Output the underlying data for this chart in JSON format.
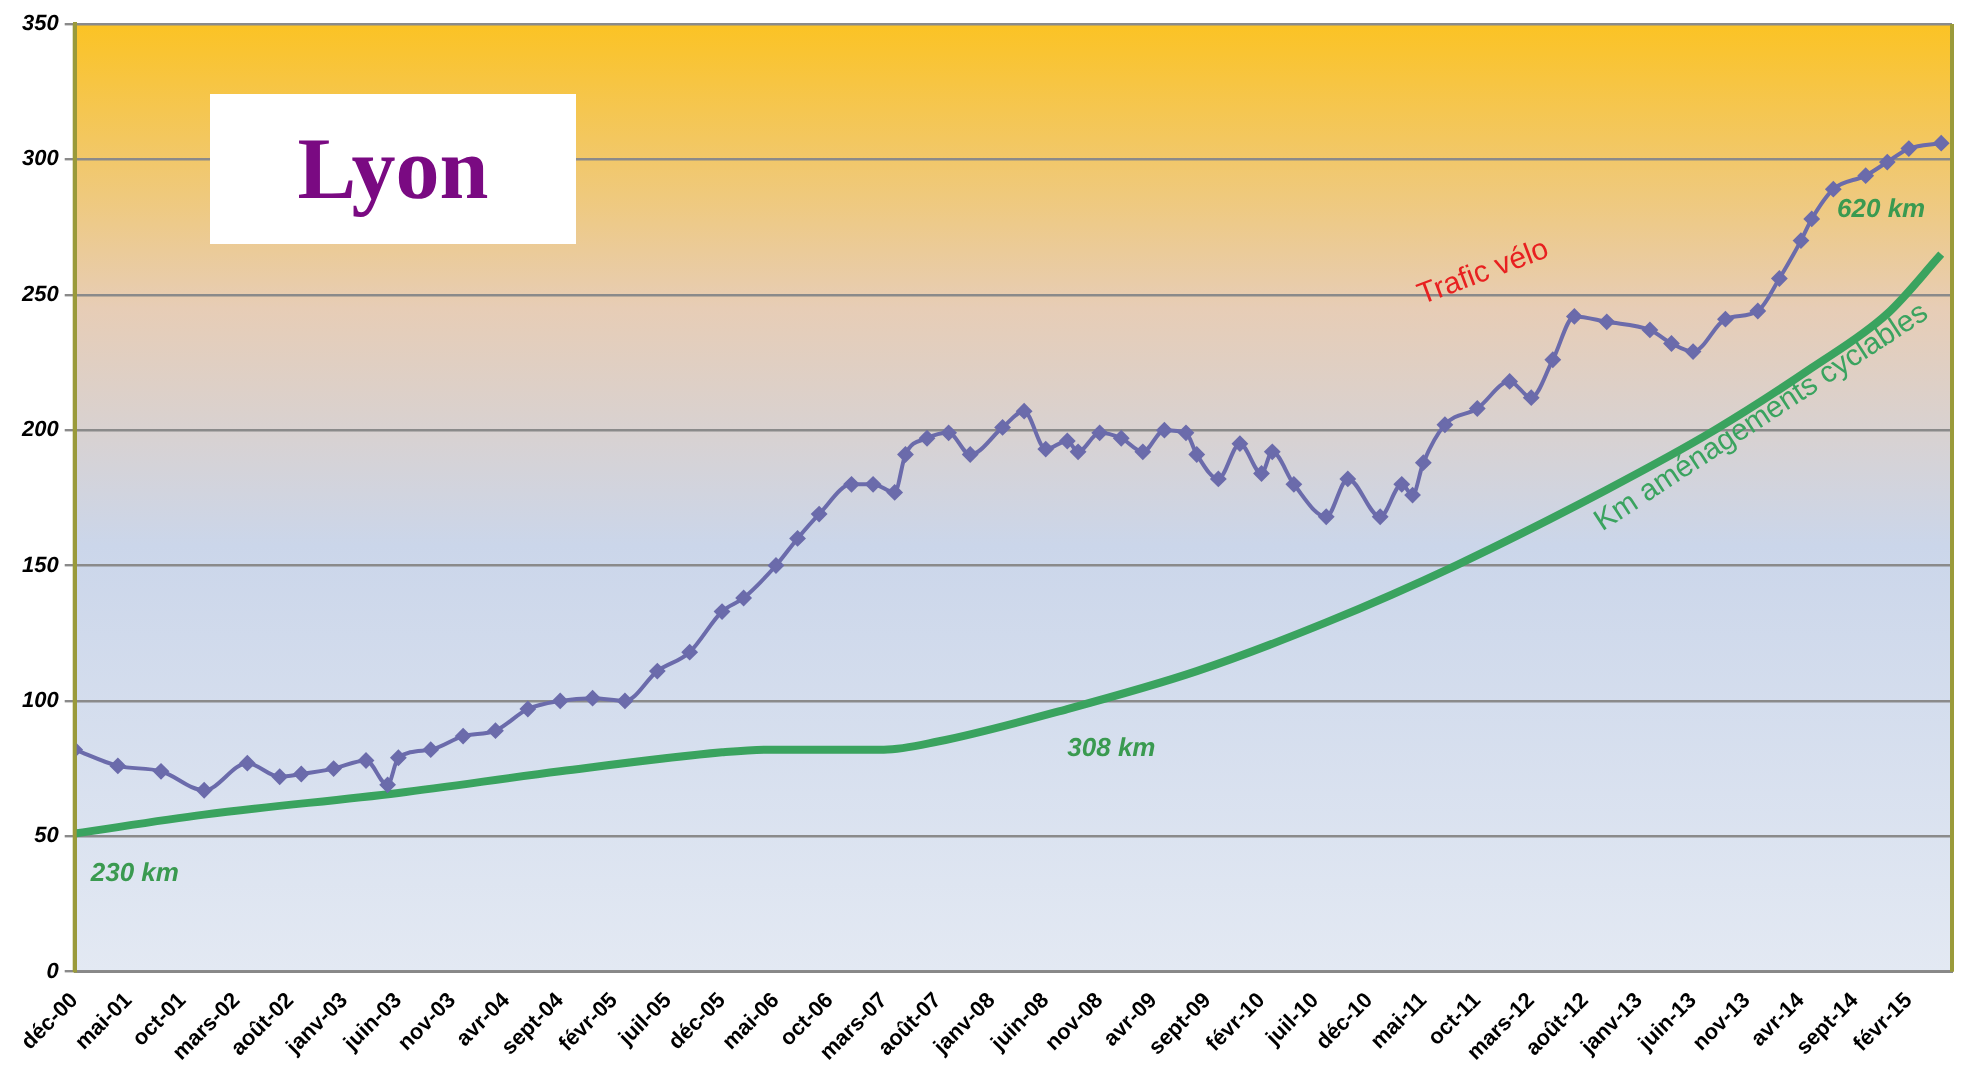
{
  "chart_data": {
    "type": "line",
    "title": "Lyon",
    "xlim": [
      "2000-12",
      "2015-06"
    ],
    "xticks": [
      {
        "value": "2000-12",
        "label": "déc-00"
      },
      {
        "value": "2001-05",
        "label": "mai-01"
      },
      {
        "value": "2001-10",
        "label": "oct-01"
      },
      {
        "value": "2002-03",
        "label": "mars-02"
      },
      {
        "value": "2002-08",
        "label": "août-02"
      },
      {
        "value": "2003-01",
        "label": "janv-03"
      },
      {
        "value": "2003-06",
        "label": "juin-03"
      },
      {
        "value": "2003-11",
        "label": "nov-03"
      },
      {
        "value": "2004-04",
        "label": "avr-04"
      },
      {
        "value": "2004-09",
        "label": "sept-04"
      },
      {
        "value": "2005-02",
        "label": "févr-05"
      },
      {
        "value": "2005-07",
        "label": "juil-05"
      },
      {
        "value": "2005-12",
        "label": "déc-05"
      },
      {
        "value": "2006-05",
        "label": "mai-06"
      },
      {
        "value": "2006-10",
        "label": "oct-06"
      },
      {
        "value": "2007-03",
        "label": "mars-07"
      },
      {
        "value": "2007-08",
        "label": "août-07"
      },
      {
        "value": "2008-01",
        "label": "janv-08"
      },
      {
        "value": "2008-06",
        "label": "juin-08"
      },
      {
        "value": "2008-11",
        "label": "nov-08"
      },
      {
        "value": "2009-04",
        "label": "avr-09"
      },
      {
        "value": "2009-09",
        "label": "sept-09"
      },
      {
        "value": "2010-02",
        "label": "févr-10"
      },
      {
        "value": "2010-07",
        "label": "juil-10"
      },
      {
        "value": "2010-12",
        "label": "déc-10"
      },
      {
        "value": "2011-05",
        "label": "mai-11"
      },
      {
        "value": "2011-10",
        "label": "oct-11"
      },
      {
        "value": "2012-03",
        "label": "mars-12"
      },
      {
        "value": "2012-08",
        "label": "août-12"
      },
      {
        "value": "2013-01",
        "label": "janv-13"
      },
      {
        "value": "2013-06",
        "label": "juin-13"
      },
      {
        "value": "2013-11",
        "label": "nov-13"
      },
      {
        "value": "2014-04",
        "label": "avr-14"
      },
      {
        "value": "2014-09",
        "label": "sept-14"
      },
      {
        "value": "2015-02",
        "label": "févr-15"
      }
    ],
    "ylim": [
      0,
      350
    ],
    "yticks": [
      0,
      50,
      100,
      150,
      200,
      250,
      300,
      350
    ],
    "grid": "y",
    "legend": false,
    "series": [
      {
        "name": "Trafic vélo",
        "color": "#6b6bab",
        "marker": "diamond",
        "x": [
          "2000-12",
          "2001-04",
          "2001-08",
          "2001-12",
          "2002-04",
          "2002-07",
          "2002-09",
          "2002-12",
          "2003-03",
          "2003-05",
          "2003-06",
          "2003-09",
          "2003-12",
          "2004-03",
          "2004-06",
          "2004-09",
          "2004-12",
          "2005-03",
          "2005-06",
          "2005-09",
          "2005-12",
          "2006-02",
          "2006-05",
          "2006-07",
          "2006-09",
          "2006-12",
          "2007-02",
          "2007-04",
          "2007-05",
          "2007-07",
          "2007-09",
          "2007-11",
          "2008-02",
          "2008-04",
          "2008-06",
          "2008-08",
          "2008-09",
          "2008-11",
          "2009-01",
          "2009-03",
          "2009-05",
          "2009-07",
          "2009-08",
          "2009-10",
          "2009-12",
          "2010-02",
          "2010-03",
          "2010-05",
          "2010-08",
          "2010-10",
          "2011-01",
          "2011-03",
          "2011-04",
          "2011-05",
          "2011-07",
          "2011-10",
          "2012-01",
          "2012-03",
          "2012-05",
          "2012-07",
          "2012-10",
          "2013-02",
          "2013-04",
          "2013-06",
          "2013-09",
          "2013-12",
          "2014-02",
          "2014-04",
          "2014-05",
          "2014-07",
          "2014-10",
          "2014-12",
          "2015-02",
          "2015-05"
        ],
        "values": [
          82,
          76,
          74,
          67,
          77,
          72,
          73,
          75,
          78,
          69,
          79,
          82,
          87,
          89,
          97,
          100,
          101,
          100,
          111,
          118,
          133,
          138,
          150,
          160,
          169,
          180,
          180,
          177,
          191,
          197,
          199,
          191,
          201,
          207,
          193,
          196,
          192,
          199,
          197,
          192,
          200,
          199,
          191,
          182,
          195,
          184,
          192,
          180,
          168,
          182,
          168,
          180,
          176,
          188,
          202,
          208,
          218,
          212,
          226,
          242,
          240,
          237,
          232,
          229,
          241,
          244,
          256,
          270,
          278,
          289,
          294,
          299,
          304,
          306
        ]
      },
      {
        "name": "Km aménagements cyclables",
        "color": "#3aa35f",
        "marker": "none",
        "x": [
          "2000-12",
          "2001-12",
          "2003-06",
          "2004-09",
          "2005-12",
          "2006-04",
          "2007-03",
          "2007-08",
          "2008-08",
          "2009-08",
          "2010-08",
          "2011-08",
          "2012-10",
          "2013-08",
          "2014-05",
          "2014-12",
          "2015-05"
        ],
        "values": [
          51,
          58,
          66,
          74,
          81,
          82,
          82,
          85,
          97,
          111,
          129,
          150,
          178,
          200,
          223,
          243,
          265
        ]
      }
    ],
    "annotations": [
      {
        "text": "230 km",
        "x": "2000-12",
        "y": 51
      },
      {
        "text": "308 km",
        "x": "2008-08",
        "y": 97
      },
      {
        "text": "620 km",
        "x": "2015-05",
        "y": 265
      }
    ]
  }
}
